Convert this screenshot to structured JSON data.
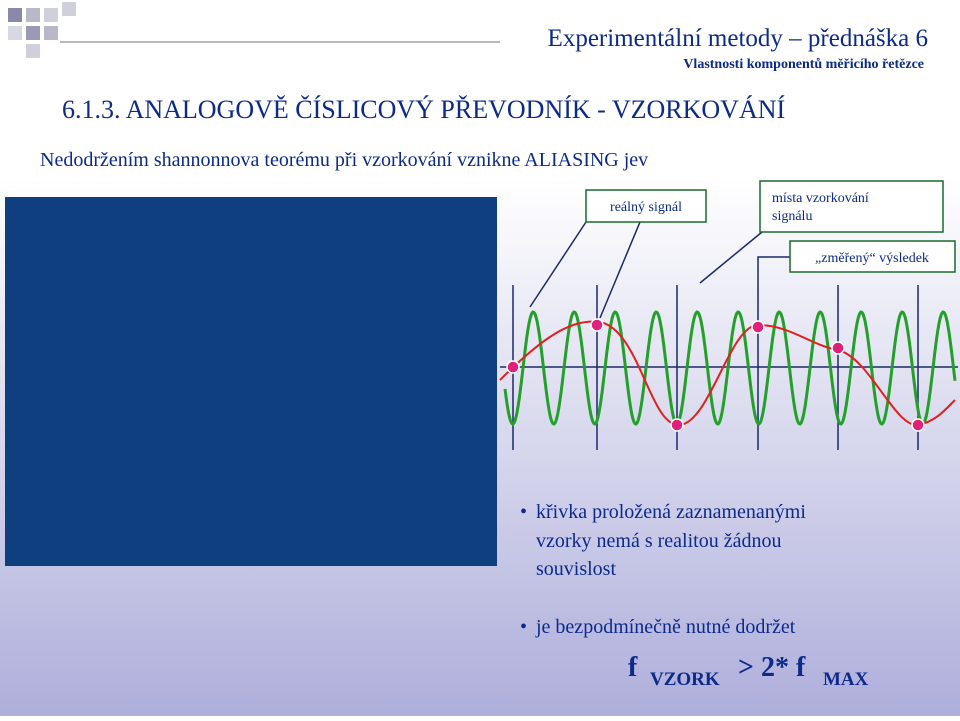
{
  "header": {
    "title": "Experimentální metody – přednáška 6",
    "subtitle": "Vlastnosti komponentů měřicího řetězce"
  },
  "section": {
    "heading": "6.1.3. ANALOGOVĚ ČÍSLICOVÝ PŘEVODNÍK - VZORKOVÁNÍ",
    "intro": "Nedodržením shannonnova teorému při vzorkování vznikne ALIASING jev"
  },
  "diagram": {
    "real_signal": "reálný signál",
    "sampling_points": [
      "místa vzorkování",
      "signálu"
    ],
    "measured_result": "„změřený“ výsledek"
  },
  "notes": [
    [
      "křivka proložená zaznamenanými",
      "vzorky nemá s realitou žádnou",
      "souvislost"
    ],
    [
      "je bezpodmínečně nutné dodržet"
    ]
  ],
  "formula": {
    "f1": "f",
    "sub1": "VZORK",
    "op": "> 2* f",
    "sub2": "MAX"
  }
}
